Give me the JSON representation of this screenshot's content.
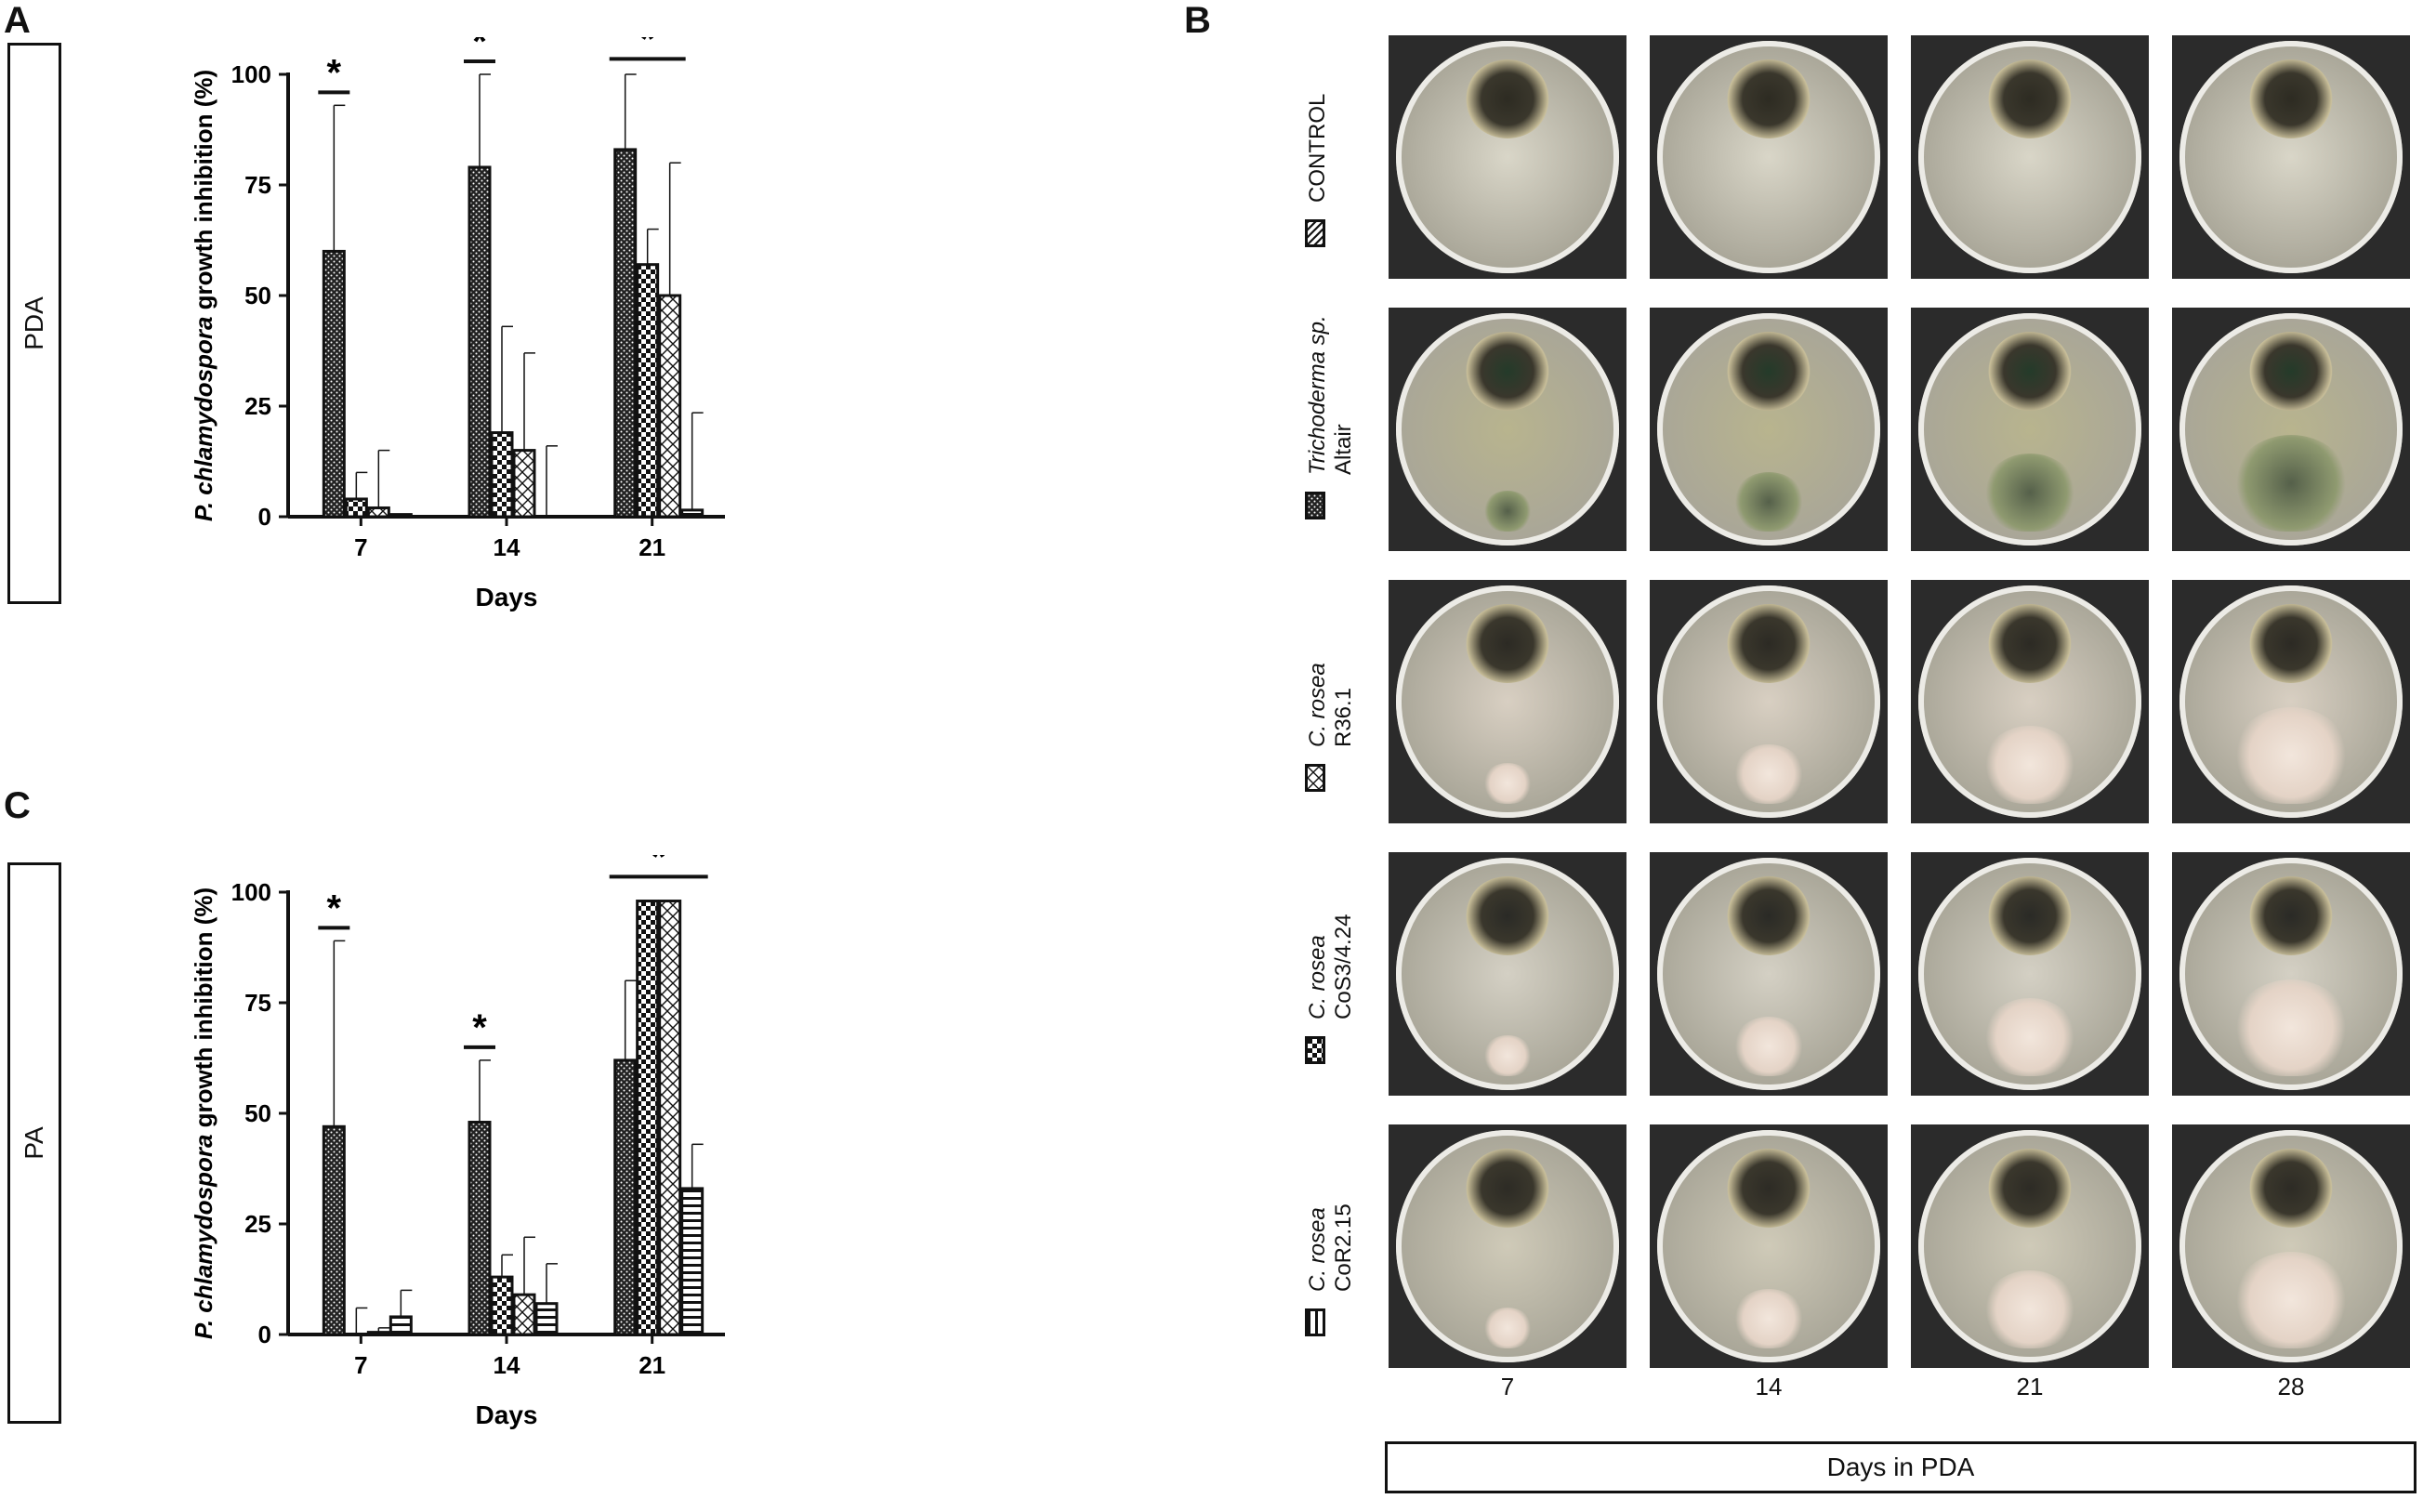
{
  "panels": {
    "A": {
      "letter": "A",
      "medium": "PDA"
    },
    "B": {
      "letter": "B"
    },
    "C": {
      "letter": "C",
      "medium": "PA"
    }
  },
  "chart_data": [
    {
      "type": "bar",
      "panel": "A",
      "ylabel_italic": "P. chlamydospora",
      "ylabel_rest": " growth inhibition (%)",
      "xlabel": "Days",
      "categories": [
        "7",
        "14",
        "21"
      ],
      "ylim": [
        0,
        100
      ],
      "yticks": [
        0,
        25,
        50,
        75,
        100
      ],
      "series": [
        {
          "pattern": "dots-dark",
          "values": [
            60,
            79,
            83
          ],
          "errors": [
            33,
            21,
            17
          ]
        },
        {
          "pattern": "check-small",
          "values": [
            4,
            19,
            57
          ],
          "errors": [
            6,
            24,
            8
          ]
        },
        {
          "pattern": "lattice",
          "values": [
            2,
            15,
            50
          ],
          "errors": [
            13,
            22,
            30
          ]
        },
        {
          "pattern": "hstripes",
          "values": [
            0.5,
            0,
            1.5
          ],
          "errors": [
            0,
            16,
            22
          ]
        }
      ],
      "significance": [
        {
          "category": "7",
          "label": "*",
          "span": [
            0,
            0
          ]
        },
        {
          "category": "14",
          "label": "*",
          "span": [
            0,
            0
          ]
        },
        {
          "category": "21",
          "label": "*",
          "span": [
            0,
            2
          ]
        }
      ]
    },
    {
      "type": "bar",
      "panel": "C",
      "ylabel_italic": "P. chlamydospora",
      "ylabel_rest": " growth inhibition (%)",
      "xlabel": "Days",
      "categories": [
        "7",
        "14",
        "21"
      ],
      "ylim": [
        0,
        100
      ],
      "yticks": [
        0,
        25,
        50,
        75,
        100
      ],
      "series": [
        {
          "pattern": "dots-dark",
          "values": [
            47,
            48,
            62
          ],
          "errors": [
            42,
            14,
            18
          ]
        },
        {
          "pattern": "check-small",
          "values": [
            0,
            13,
            98
          ],
          "errors": [
            6,
            5,
            0
          ]
        },
        {
          "pattern": "lattice",
          "values": [
            0.5,
            9,
            98
          ],
          "errors": [
            1,
            13,
            0
          ]
        },
        {
          "pattern": "hstripes",
          "values": [
            4,
            7,
            33
          ],
          "errors": [
            6,
            9,
            10
          ]
        }
      ],
      "significance": [
        {
          "category": "7",
          "label": "*",
          "span": [
            0,
            0
          ]
        },
        {
          "category": "14",
          "label": "*",
          "span": [
            0,
            0
          ]
        },
        {
          "category": "21",
          "label": "*",
          "span": [
            0,
            3
          ]
        }
      ]
    }
  ],
  "plates_panel": {
    "rows": [
      {
        "line1": "CONTROL",
        "line2": "",
        "italic1": false,
        "pattern": "diag"
      },
      {
        "line1": "Trichoderma sp.",
        "line2": "Altair",
        "italic1": true,
        "pattern": "dots-dark"
      },
      {
        "line1": "C. rosea",
        "line2": "R36.1",
        "italic1": true,
        "pattern": "lattice"
      },
      {
        "line1": "C. rosea",
        "line2": "CoS3/4.24",
        "italic1": true,
        "pattern": "check-small"
      },
      {
        "line1": "C. rosea",
        "line2": "CoR2.15",
        "italic1": true,
        "pattern": "vstripes"
      }
    ],
    "days": [
      "7",
      "14",
      "21",
      "28"
    ],
    "axis_title": "Days in PDA"
  },
  "colors": {
    "bar_stroke": "#111111",
    "plate_bg": "#2b2b2b",
    "plate_agar": "#c9c6b8"
  }
}
